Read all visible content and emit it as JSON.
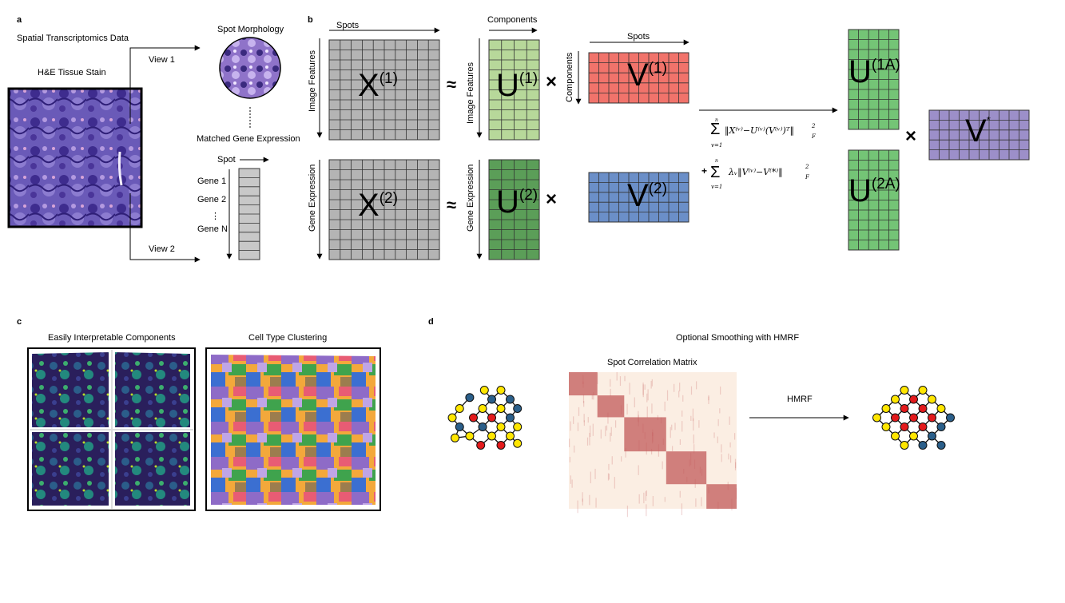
{
  "panels": {
    "a": {
      "letter": "a",
      "title": "Spatial Transcriptomics Data",
      "he_label": "H&E Tissue Stain",
      "view1": "View 1",
      "view2": "View 2",
      "spot_morphology": "Spot Morphology",
      "matched_gene": "Matched Gene Expression",
      "spot": "Spot",
      "genes": [
        "Gene 1",
        "Gene 2",
        "⋮",
        "Gene N"
      ]
    },
    "b": {
      "letter": "b",
      "spots": "Spots",
      "components": "Components",
      "image_features": "Image Features",
      "gene_expression": "Gene Expression",
      "approx": "≈",
      "times": "×",
      "X1": {
        "base": "X",
        "sup": "(1)"
      },
      "X2": {
        "base": "X",
        "sup": "(2)"
      },
      "U1": {
        "base": "U",
        "sup": "(1)"
      },
      "U2": {
        "base": "U",
        "sup": "(2)"
      },
      "V1": {
        "base": "V",
        "sup": "(1)"
      },
      "V2": {
        "base": "V",
        "sup": "(2)"
      },
      "U1A": {
        "base": "U",
        "sup": "(1A)"
      },
      "U2A": {
        "base": "U",
        "sup": "(2A)"
      },
      "Vstar": {
        "base": "V",
        "sup": "*"
      },
      "formula": {
        "sum1_top": "n",
        "sum1_bottom": "v=1",
        "term1": "‖X⁽ᵛ⁾−U⁽ᵛ⁾(V⁽ᵛ⁾)ᵀ‖",
        "term1_sup": "2",
        "term1_sub": "F",
        "plus": "+",
        "sum2_top": "n",
        "sum2_bottom": "v=1",
        "term2": "λᵥ‖V⁽ᵛ⁾−V⁽*⁾‖",
        "term2_sup": "2",
        "term2_sub": "F"
      }
    },
    "c": {
      "letter": "c",
      "components_title": "Easily Interpretable Components",
      "clustering_title": "Cell Type Clustering"
    },
    "d": {
      "letter": "d",
      "title": "Optional Smoothing with HMRF",
      "matrix_title": "Spot Correlation Matrix",
      "arrow_label": "HMRF"
    }
  },
  "colors": {
    "gray": "#b4b4b4",
    "light_green": "#b7d89a",
    "dark_green": "#5b9e58",
    "bright_green": "#74c476",
    "red": "#f1736b",
    "blue": "#6b8fc8",
    "purple": "#9c8fc9",
    "node_yellow": "#ffe600",
    "node_red": "#e31a1c",
    "node_blue": "#2b5f8a",
    "matrix_bg": "#fbeee3",
    "matrix_block": "#c25a5a"
  },
  "graph_before": {
    "nodes": [
      {
        "x": 0.2,
        "y": -3,
        "c": "yellow"
      },
      {
        "x": 2,
        "y": -3,
        "c": "yellow"
      },
      {
        "x": -1.4,
        "y": -2.2,
        "c": "blue"
      },
      {
        "x": 1,
        "y": -2,
        "c": "blue"
      },
      {
        "x": 3,
        "y": -2,
        "c": "blue"
      },
      {
        "x": -2.5,
        "y": -1,
        "c": "yellow"
      },
      {
        "x": 0,
        "y": -1,
        "c": "yellow"
      },
      {
        "x": 2,
        "y": -1,
        "c": "yellow"
      },
      {
        "x": 3.8,
        "y": -1,
        "c": "blue"
      },
      {
        "x": -3.3,
        "y": 0,
        "c": "yellow"
      },
      {
        "x": -1,
        "y": 0,
        "c": "red"
      },
      {
        "x": 1,
        "y": 0,
        "c": "red"
      },
      {
        "x": 3,
        "y": 0,
        "c": "blue"
      },
      {
        "x": -2.5,
        "y": 1,
        "c": "blue"
      },
      {
        "x": 0,
        "y": 1,
        "c": "blue"
      },
      {
        "x": 2,
        "y": 1,
        "c": "yellow"
      },
      {
        "x": 3.8,
        "y": 1,
        "c": "yellow"
      },
      {
        "x": -1.4,
        "y": 2,
        "c": "yellow"
      },
      {
        "x": 1,
        "y": 2,
        "c": "yellow"
      },
      {
        "x": 3,
        "y": 2,
        "c": "yellow"
      },
      {
        "x": -3,
        "y": 2.2,
        "c": "yellow"
      },
      {
        "x": -0.2,
        "y": 3,
        "c": "red"
      },
      {
        "x": 2,
        "y": 3,
        "c": "red"
      },
      {
        "x": 3.8,
        "y": 2.8,
        "c": "yellow"
      }
    ]
  },
  "graph_after": {
    "nodes": [
      {
        "x": 0,
        "y": -3,
        "c": "yellow"
      },
      {
        "x": 2,
        "y": -3,
        "c": "yellow"
      },
      {
        "x": -1,
        "y": -2,
        "c": "yellow"
      },
      {
        "x": 1,
        "y": -2,
        "c": "red"
      },
      {
        "x": 3,
        "y": -2,
        "c": "yellow"
      },
      {
        "x": -2,
        "y": -1,
        "c": "yellow"
      },
      {
        "x": 0,
        "y": -1,
        "c": "red"
      },
      {
        "x": 2,
        "y": -1,
        "c": "red"
      },
      {
        "x": 4,
        "y": -1,
        "c": "yellow"
      },
      {
        "x": -3,
        "y": 0,
        "c": "yellow"
      },
      {
        "x": -1,
        "y": 0,
        "c": "red"
      },
      {
        "x": 1,
        "y": 0,
        "c": "red"
      },
      {
        "x": 3,
        "y": 0,
        "c": "red"
      },
      {
        "x": 5,
        "y": 0,
        "c": "blue"
      },
      {
        "x": -2,
        "y": 1,
        "c": "yellow"
      },
      {
        "x": 0,
        "y": 1,
        "c": "red"
      },
      {
        "x": 2,
        "y": 1,
        "c": "red"
      },
      {
        "x": 4,
        "y": 1,
        "c": "blue"
      },
      {
        "x": -1,
        "y": 2,
        "c": "yellow"
      },
      {
        "x": 1,
        "y": 2,
        "c": "yellow"
      },
      {
        "x": 3,
        "y": 2,
        "c": "blue"
      },
      {
        "x": 0,
        "y": 3,
        "c": "yellow"
      },
      {
        "x": 2,
        "y": 3,
        "c": "blue"
      },
      {
        "x": 4,
        "y": 3,
        "c": "blue"
      }
    ]
  }
}
